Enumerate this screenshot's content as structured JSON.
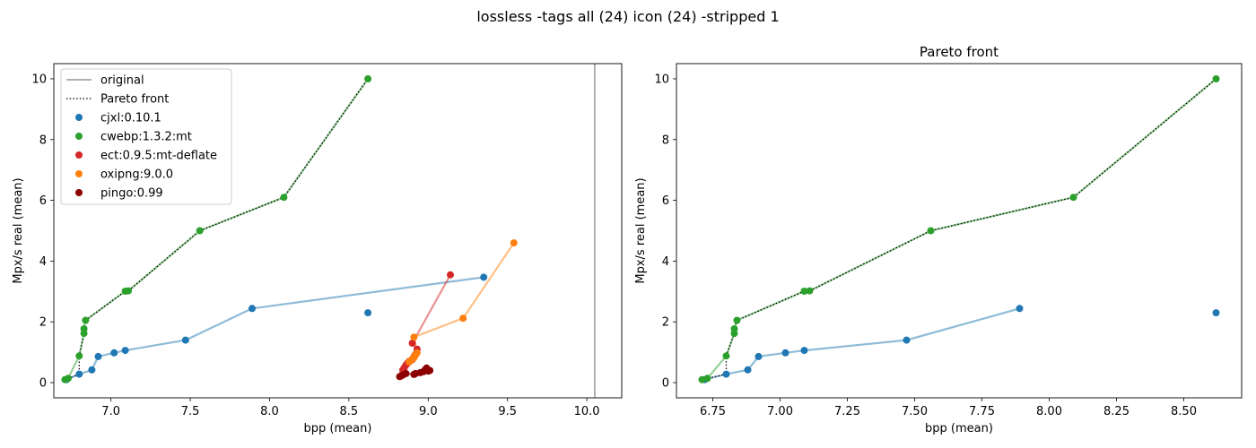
{
  "figure": {
    "suptitle": "lossless -tags all (24) icon (24) -stripped 1"
  },
  "colors": {
    "cjxl": "#1f77b4",
    "cwebp": "#2ca02c",
    "ect": "#d62728",
    "oxipng": "#ff7f0e",
    "pingo": "#8c0000",
    "original_line": "#808080",
    "pareto_line": "#000000"
  },
  "chart_data": [
    {
      "type": "scatter",
      "title": "",
      "xlabel": "bpp (mean)",
      "ylabel": "Mpx/s real (mean)",
      "xlim": [
        6.64,
        10.22
      ],
      "ylim": [
        -0.5,
        10.5
      ],
      "xticks": [
        "7.0",
        "7.5",
        "8.0",
        "8.5",
        "9.0",
        "9.5",
        "10.0"
      ],
      "yticks": [
        "0",
        "2",
        "4",
        "6",
        "8",
        "10"
      ],
      "grid": false,
      "legend": {
        "placement": "top-left",
        "entries": [
          "original",
          "Pareto front",
          "cjxl:0.10.1",
          "cwebp:1.3.2:mt",
          "ect:0.9.5:mt-deflate",
          "oxipng:9.0.0",
          "pingo:0.99"
        ]
      },
      "original_x": 10.05,
      "series": [
        {
          "name": "cjxl:0.10.1",
          "color_key": "cjxl",
          "points": [
            [
              6.72,
              0.1
            ],
            [
              6.8,
              0.28
            ],
            [
              6.88,
              0.42
            ],
            [
              6.92,
              0.86
            ],
            [
              7.02,
              0.98
            ],
            [
              7.09,
              1.06
            ],
            [
              7.47,
              1.4
            ],
            [
              7.89,
              2.44
            ],
            [
              9.35,
              3.47
            ]
          ],
          "extra_points": [
            [
              8.62,
              2.3
            ]
          ]
        },
        {
          "name": "cwebp:1.3.2:mt",
          "color_key": "cwebp",
          "points": [
            [
              6.71,
              0.1
            ],
            [
              6.73,
              0.14
            ],
            [
              6.8,
              0.88
            ],
            [
              6.83,
              1.62
            ],
            [
              6.83,
              1.77
            ],
            [
              6.84,
              2.05
            ],
            [
              7.09,
              3.01
            ],
            [
              7.11,
              3.02
            ],
            [
              7.56,
              5.0
            ],
            [
              8.09,
              6.1
            ],
            [
              8.62,
              10.0
            ]
          ]
        },
        {
          "name": "ect:0.9.5:mt-deflate",
          "color_key": "ect",
          "points": [
            [
              8.83,
              0.22
            ],
            [
              8.84,
              0.3
            ],
            [
              8.84,
              0.42
            ],
            [
              8.85,
              0.5
            ],
            [
              8.86,
              0.58
            ],
            [
              8.87,
              0.64
            ],
            [
              8.88,
              0.7
            ],
            [
              8.9,
              0.76
            ],
            [
              8.91,
              0.85
            ],
            [
              8.92,
              0.93
            ],
            [
              8.93,
              1.1
            ],
            [
              8.9,
              1.3
            ],
            [
              9.14,
              3.55
            ]
          ]
        },
        {
          "name": "oxipng:9.0.0",
          "color_key": "oxipng",
          "points": [
            [
              8.88,
              0.68
            ],
            [
              8.89,
              0.72
            ],
            [
              8.9,
              0.78
            ],
            [
              8.91,
              0.82
            ],
            [
              8.92,
              0.9
            ],
            [
              8.93,
              0.98
            ],
            [
              8.91,
              1.5
            ],
            [
              9.22,
              2.12
            ],
            [
              9.54,
              4.6
            ]
          ]
        },
        {
          "name": "pingo:0.99",
          "color_key": "pingo",
          "points": [
            [
              8.82,
              0.2
            ],
            [
              8.84,
              0.25
            ],
            [
              8.86,
              0.3
            ],
            [
              8.91,
              0.27
            ],
            [
              8.92,
              0.3
            ],
            [
              8.95,
              0.33
            ],
            [
              8.97,
              0.36
            ],
            [
              8.98,
              0.42
            ],
            [
              8.99,
              0.48
            ],
            [
              9.0,
              0.38
            ],
            [
              9.01,
              0.4
            ]
          ]
        }
      ],
      "pareto_front": [
        [
          6.71,
          0.1
        ],
        [
          6.73,
          0.14
        ],
        [
          6.8,
          0.28
        ],
        [
          6.8,
          0.88
        ],
        [
          6.83,
          1.62
        ],
        [
          6.83,
          1.77
        ],
        [
          6.84,
          2.05
        ],
        [
          7.09,
          3.01
        ],
        [
          7.11,
          3.02
        ],
        [
          7.56,
          5.0
        ],
        [
          8.09,
          6.1
        ],
        [
          8.62,
          10.0
        ]
      ]
    },
    {
      "type": "scatter",
      "title": "Pareto front",
      "xlabel": "bpp (mean)",
      "ylabel": "Mpx/s real (mean)",
      "xlim": [
        6.615,
        8.715
      ],
      "ylim": [
        -0.5,
        10.5
      ],
      "xticks": [
        "6.75",
        "7.00",
        "7.25",
        "7.50",
        "7.75",
        "8.00",
        "8.25",
        "8.50"
      ],
      "yticks": [
        "0",
        "2",
        "4",
        "6",
        "8",
        "10"
      ],
      "grid": false,
      "series": [
        {
          "name": "cjxl:0.10.1",
          "color_key": "cjxl",
          "points": [
            [
              6.72,
              0.1
            ],
            [
              6.8,
              0.28
            ],
            [
              6.88,
              0.42
            ],
            [
              6.92,
              0.86
            ],
            [
              7.02,
              0.98
            ],
            [
              7.09,
              1.06
            ],
            [
              7.47,
              1.4
            ],
            [
              7.89,
              2.44
            ]
          ],
          "extra_points": [
            [
              8.62,
              2.3
            ]
          ]
        },
        {
          "name": "cwebp:1.3.2:mt",
          "color_key": "cwebp",
          "points": [
            [
              6.71,
              0.1
            ],
            [
              6.73,
              0.14
            ],
            [
              6.8,
              0.88
            ],
            [
              6.83,
              1.62
            ],
            [
              6.83,
              1.77
            ],
            [
              6.84,
              2.05
            ],
            [
              7.09,
              3.01
            ],
            [
              7.11,
              3.02
            ],
            [
              7.56,
              5.0
            ],
            [
              8.09,
              6.1
            ],
            [
              8.62,
              10.0
            ]
          ]
        }
      ],
      "pareto_front": [
        [
          6.71,
          0.1
        ],
        [
          6.73,
          0.14
        ],
        [
          6.8,
          0.28
        ],
        [
          6.8,
          0.88
        ],
        [
          6.83,
          1.62
        ],
        [
          6.83,
          1.77
        ],
        [
          6.84,
          2.05
        ],
        [
          7.09,
          3.01
        ],
        [
          7.11,
          3.02
        ],
        [
          7.56,
          5.0
        ],
        [
          8.09,
          6.1
        ],
        [
          8.62,
          10.0
        ]
      ]
    }
  ]
}
